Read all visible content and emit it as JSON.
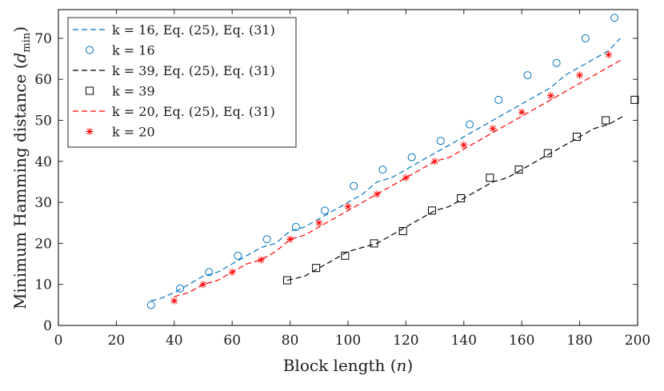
{
  "chart_data": {
    "type": "line",
    "title": "",
    "xlabel": "Block length (n)",
    "ylabel": "Minimum Hamming distance (d_min)",
    "xlim": [
      0,
      200
    ],
    "ylim": [
      0,
      77
    ],
    "xticks": [
      0,
      20,
      40,
      60,
      80,
      100,
      120,
      140,
      160,
      180,
      200
    ],
    "yticks": [
      0,
      10,
      20,
      30,
      40,
      50,
      60,
      70
    ],
    "grid": false,
    "legend_position": "top-left",
    "series": [
      {
        "name": "k = 16, Eq. (25), Eq. (31)",
        "kind": "dashed-line",
        "color": "#0072BD",
        "x": [
          32,
          35,
          40,
          45,
          50,
          55,
          60,
          65,
          70,
          75,
          80,
          85,
          90,
          95,
          100,
          105,
          110,
          115,
          120,
          125,
          130,
          135,
          140,
          145,
          150,
          155,
          160,
          165,
          170,
          175,
          180,
          185,
          190,
          194
        ],
        "y": [
          6,
          6.5,
          8,
          10,
          12,
          13,
          15,
          17,
          19,
          20,
          23,
          24,
          26,
          28,
          30,
          32,
          35,
          36,
          38,
          40,
          42,
          44,
          46,
          48,
          50,
          52,
          54,
          56,
          58,
          61,
          63,
          65,
          67,
          70
        ]
      },
      {
        "name": "k = 16",
        "kind": "markers",
        "marker": "circle",
        "color": "#0072BD",
        "x": [
          32,
          42,
          52,
          62,
          72,
          82,
          92,
          102,
          112,
          122,
          132,
          142,
          152,
          162,
          172,
          182,
          192
        ],
        "y": [
          5,
          9,
          13,
          17,
          21,
          24,
          28,
          34,
          38,
          41,
          45,
          49,
          55,
          61,
          64,
          70,
          75
        ]
      },
      {
        "name": "k = 39, Eq. (25), Eq. (31)",
        "kind": "dashed-line",
        "color": "#000000",
        "x": [
          79,
          85,
          90,
          95,
          100,
          105,
          110,
          115,
          120,
          125,
          130,
          135,
          140,
          145,
          150,
          155,
          160,
          165,
          170,
          175,
          180,
          185,
          190,
          195
        ],
        "y": [
          11,
          12,
          14,
          16,
          18,
          19,
          20,
          22,
          24,
          26,
          28,
          29,
          31,
          33,
          35,
          36,
          38,
          40,
          42,
          44,
          46,
          48,
          49,
          51
        ]
      },
      {
        "name": "k = 39",
        "kind": "markers",
        "marker": "square",
        "color": "#000000",
        "x": [
          79,
          89,
          99,
          109,
          119,
          129,
          139,
          149,
          159,
          169,
          179,
          189,
          199
        ],
        "y": [
          11,
          14,
          17,
          20,
          23,
          28,
          31,
          36,
          38,
          42,
          46,
          50,
          55
        ]
      },
      {
        "name": "k = 20, Eq. (25), Eq. (31)",
        "kind": "dashed-line",
        "color": "#FF0000",
        "x": [
          40,
          45,
          50,
          55,
          60,
          65,
          70,
          75,
          80,
          85,
          90,
          95,
          100,
          105,
          110,
          115,
          120,
          125,
          130,
          135,
          140,
          145,
          150,
          155,
          160,
          165,
          170,
          175,
          180,
          185,
          190,
          195
        ],
        "y": [
          7,
          8,
          10,
          11,
          13,
          15,
          16,
          18,
          21,
          22,
          24,
          26,
          28,
          30,
          32,
          34,
          36,
          38,
          40,
          41,
          43,
          45,
          47,
          49,
          51,
          53,
          55,
          57,
          59,
          61,
          63,
          65
        ]
      },
      {
        "name": "k = 20",
        "kind": "markers",
        "marker": "asterisk",
        "color": "#FF0000",
        "x": [
          40,
          50,
          60,
          70,
          80,
          90,
          100,
          110,
          120,
          130,
          140,
          150,
          160,
          170,
          180,
          190
        ],
        "y": [
          6,
          10,
          13,
          16,
          21,
          25,
          29,
          32,
          36,
          40,
          44,
          48,
          52,
          56,
          61,
          66
        ]
      }
    ]
  }
}
